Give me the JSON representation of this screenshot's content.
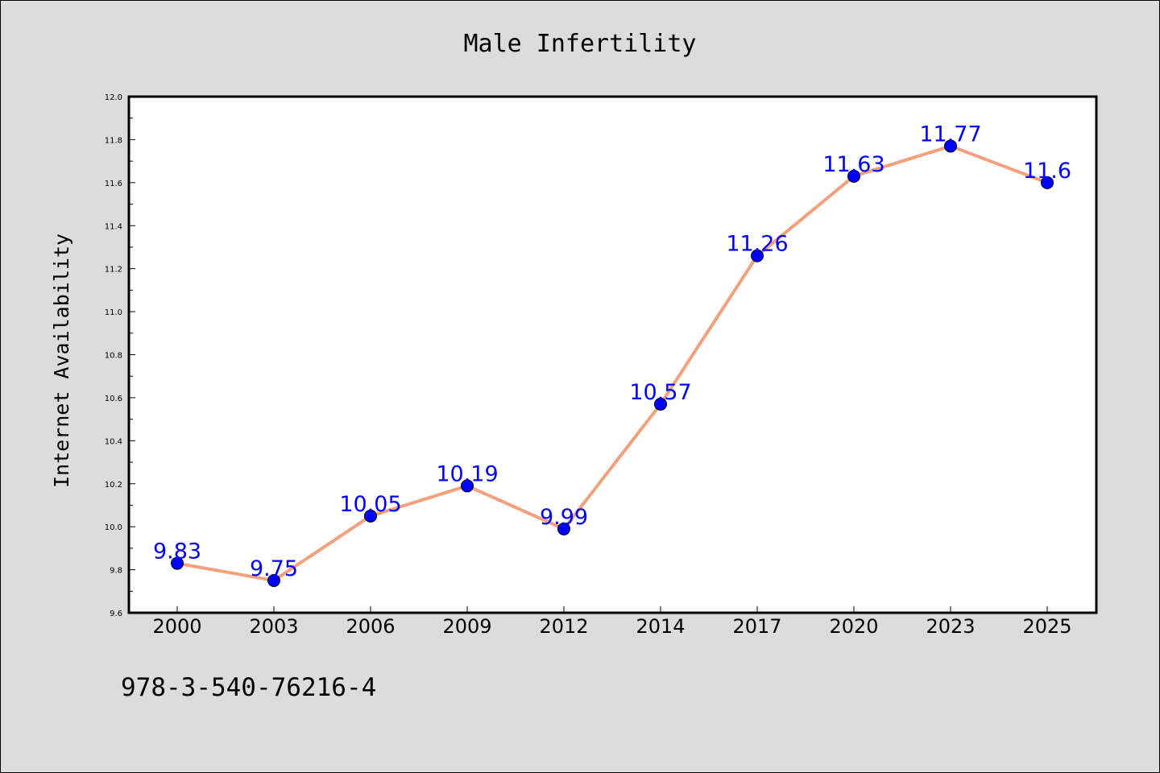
{
  "chart_data": {
    "type": "line",
    "title": "Male Infertility",
    "xlabel": "",
    "ylabel": "Internet Availability",
    "categories": [
      "2000",
      "2003",
      "2006",
      "2009",
      "2012",
      "2014",
      "2017",
      "2020",
      "2023",
      "2025"
    ],
    "values": [
      9.83,
      9.75,
      10.05,
      10.19,
      9.99,
      10.57,
      11.26,
      11.63,
      11.77,
      11.6
    ],
    "ylim": [
      9.6,
      12.0
    ],
    "yticks": [
      "9.6",
      "9.8",
      "10.0",
      "10.2",
      "10.4",
      "10.6",
      "10.8",
      "11.0",
      "11.2",
      "11.4",
      "11.6",
      "11.8",
      "12.0"
    ],
    "grid": false,
    "data_labels": true,
    "colors": {
      "line": "#f4a07c",
      "marker": "#0000ff",
      "label": "#0000ff"
    }
  },
  "footer": {
    "isbn": "978-3-540-76216-4"
  }
}
